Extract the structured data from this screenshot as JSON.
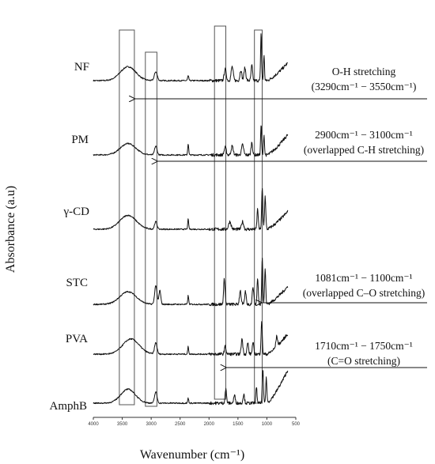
{
  "chart_data": {
    "type": "line",
    "title": "",
    "xlabel": "Wavenumber (cm⁻¹)",
    "ylabel": "Absorbance (a.u)",
    "xlim": [
      4000,
      500
    ],
    "x_ticks": [
      4000,
      3500,
      3000,
      2500,
      2000,
      1500,
      1000,
      500
    ],
    "x_tick_labels": [
      "4000",
      "3500",
      "3000",
      "2500",
      "2000",
      "1500",
      "1000",
      "500"
    ],
    "grid": false,
    "legend": "none",
    "series": [
      {
        "name": "NF",
        "peaks": [
          {
            "x": 3400,
            "h": 0.55,
            "w": 190
          },
          {
            "x": 2920,
            "h": 0.35,
            "w": 35
          },
          {
            "x": 2360,
            "h": 0.18,
            "w": 15
          },
          {
            "x": 1720,
            "h": 0.45,
            "w": 25
          },
          {
            "x": 1600,
            "h": 0.55,
            "w": 25
          },
          {
            "x": 1450,
            "h": 0.42,
            "w": 22
          },
          {
            "x": 1380,
            "h": 0.5,
            "w": 22
          },
          {
            "x": 1260,
            "h": 0.6,
            "w": 18
          },
          {
            "x": 1100,
            "h": 1.9,
            "w": 12
          },
          {
            "x": 1050,
            "h": 1.0,
            "w": 12
          }
        ],
        "tail": 0.7
      },
      {
        "name": "PM",
        "peaks": [
          {
            "x": 3400,
            "h": 0.45,
            "w": 190
          },
          {
            "x": 2920,
            "h": 0.35,
            "w": 30
          },
          {
            "x": 2360,
            "h": 0.45,
            "w": 12
          },
          {
            "x": 1720,
            "h": 0.3,
            "w": 25
          },
          {
            "x": 1600,
            "h": 0.35,
            "w": 25
          },
          {
            "x": 1420,
            "h": 0.4,
            "w": 25
          },
          {
            "x": 1260,
            "h": 0.5,
            "w": 18
          },
          {
            "x": 1100,
            "h": 1.2,
            "w": 12
          },
          {
            "x": 1050,
            "h": 0.8,
            "w": 12
          }
        ],
        "tail": 0.8
      },
      {
        "name": "γ-CD",
        "peaks": [
          {
            "x": 3400,
            "h": 0.55,
            "w": 200
          },
          {
            "x": 2920,
            "h": 0.3,
            "w": 30
          },
          {
            "x": 2360,
            "h": 0.4,
            "w": 12
          },
          {
            "x": 1640,
            "h": 0.3,
            "w": 30
          },
          {
            "x": 1420,
            "h": 0.3,
            "w": 25
          },
          {
            "x": 1160,
            "h": 0.8,
            "w": 15
          },
          {
            "x": 1080,
            "h": 1.6,
            "w": 15
          },
          {
            "x": 1030,
            "h": 1.3,
            "w": 15
          }
        ],
        "tail": 0.7
      },
      {
        "name": "STC",
        "peaks": [
          {
            "x": 3400,
            "h": 0.5,
            "w": 200
          },
          {
            "x": 2920,
            "h": 0.75,
            "w": 28
          },
          {
            "x": 2850,
            "h": 0.55,
            "w": 22
          },
          {
            "x": 2360,
            "h": 0.35,
            "w": 12
          },
          {
            "x": 1735,
            "h": 1.0,
            "w": 18
          },
          {
            "x": 1460,
            "h": 0.55,
            "w": 20
          },
          {
            "x": 1370,
            "h": 0.5,
            "w": 18
          },
          {
            "x": 1240,
            "h": 0.7,
            "w": 18
          },
          {
            "x": 1160,
            "h": 1.0,
            "w": 15
          },
          {
            "x": 1080,
            "h": 1.9,
            "w": 13
          },
          {
            "x": 1030,
            "h": 1.4,
            "w": 14
          }
        ],
        "tail": 0.7
      },
      {
        "name": "PVA",
        "peaks": [
          {
            "x": 3350,
            "h": 0.6,
            "w": 200
          },
          {
            "x": 2920,
            "h": 0.45,
            "w": 30
          },
          {
            "x": 2360,
            "h": 0.3,
            "w": 12
          },
          {
            "x": 1720,
            "h": 0.3,
            "w": 20
          },
          {
            "x": 1430,
            "h": 0.6,
            "w": 20
          },
          {
            "x": 1330,
            "h": 0.45,
            "w": 18
          },
          {
            "x": 1240,
            "h": 0.45,
            "w": 18
          },
          {
            "x": 1090,
            "h": 1.3,
            "w": 15
          },
          {
            "x": 830,
            "h": 0.4,
            "w": 20
          }
        ],
        "tail": 0.8
      },
      {
        "name": "AmphB",
        "peaks": [
          {
            "x": 3400,
            "h": 0.55,
            "w": 180
          },
          {
            "x": 2920,
            "h": 0.45,
            "w": 30
          },
          {
            "x": 2360,
            "h": 0.2,
            "w": 12
          },
          {
            "x": 1710,
            "h": 0.55,
            "w": 18
          },
          {
            "x": 1560,
            "h": 0.3,
            "w": 20
          },
          {
            "x": 1400,
            "h": 0.35,
            "w": 18
          },
          {
            "x": 1180,
            "h": 0.6,
            "w": 15
          },
          {
            "x": 1070,
            "h": 1.35,
            "w": 14
          },
          {
            "x": 1010,
            "h": 1.0,
            "w": 14
          }
        ],
        "tail": 1.3
      }
    ],
    "highlight_regions": [
      {
        "x_from": 3550,
        "x_to": 3290
      },
      {
        "x_from": 3100,
        "x_to": 2900
      },
      {
        "x_from": 1905,
        "x_to": 1710
      },
      {
        "x_from": 1215,
        "x_to": 1081
      }
    ],
    "annotations": [
      {
        "line1": "O-H stretching",
        "line2": "(3290cm⁻¹ − 3550cm⁻¹)",
        "arrow_to_x": 3290
      },
      {
        "line1": "2900cm⁻¹ − 3100cm⁻¹",
        "line2": "(overlapped C-H stretching)",
        "arrow_to_x": 2900
      },
      {
        "line1": "1081cm⁻¹ − 1100cm⁻¹",
        "line2": "(overlapped C–O stretching)",
        "arrow_to_x": 1100
      },
      {
        "line1": "1710cm⁻¹ − 1750cm⁻¹",
        "line2": "(C=O stretching)",
        "arrow_to_x": 1710
      }
    ]
  }
}
